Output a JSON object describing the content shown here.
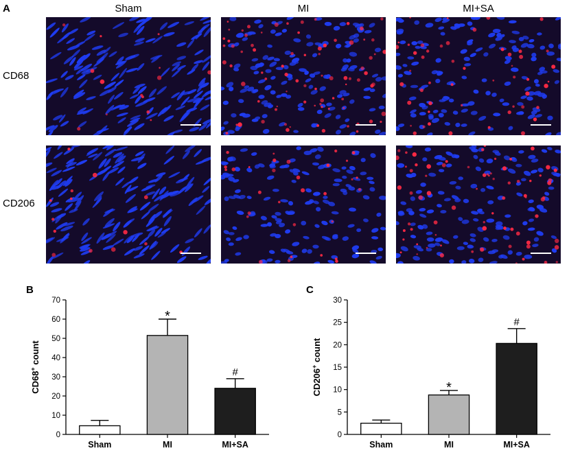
{
  "panel_a": {
    "letter": "A",
    "columns": [
      "Sham",
      "MI",
      "MI+SA"
    ],
    "rows": [
      "CD68",
      "CD206"
    ],
    "colors": {
      "background": "#140a2a",
      "nuclei": "#1f3cf2",
      "marker": "#ff2a44",
      "scale_bar": "#ffffff"
    },
    "marker_density": [
      [
        0.15,
        0.9,
        0.55
      ],
      [
        0.15,
        0.35,
        0.8
      ]
    ]
  },
  "chart_data": [
    {
      "panel": "B",
      "type": "bar",
      "categories": [
        "Sham",
        "MI",
        "MI+SA"
      ],
      "values": [
        4.5,
        51.5,
        24
      ],
      "errors": [
        2.8,
        8.5,
        5
      ],
      "annotations": [
        "",
        "*",
        "#"
      ],
      "colors": [
        "#ffffff",
        "#b4b4b4",
        "#1e1e1e"
      ],
      "ylabel_main": "CD68",
      "ylabel_sup": "+",
      "ylabel_rest": " count",
      "ylim": [
        0,
        70
      ],
      "yticks": [
        "0",
        "10",
        "20",
        "30",
        "40",
        "50",
        "60",
        "70"
      ]
    },
    {
      "panel": "C",
      "type": "bar",
      "categories": [
        "Sham",
        "MI",
        "MI+SA"
      ],
      "values": [
        2.5,
        8.8,
        20.3
      ],
      "errors": [
        0.7,
        1.0,
        3.3
      ],
      "annotations": [
        "",
        "*",
        "#"
      ],
      "colors": [
        "#ffffff",
        "#b4b4b4",
        "#1e1e1e"
      ],
      "ylabel_main": "CD206",
      "ylabel_sup": "+",
      "ylabel_rest": " count",
      "ylim": [
        0,
        30
      ],
      "yticks": [
        "0",
        "5",
        "10",
        "15",
        "20",
        "25",
        "30"
      ]
    }
  ]
}
